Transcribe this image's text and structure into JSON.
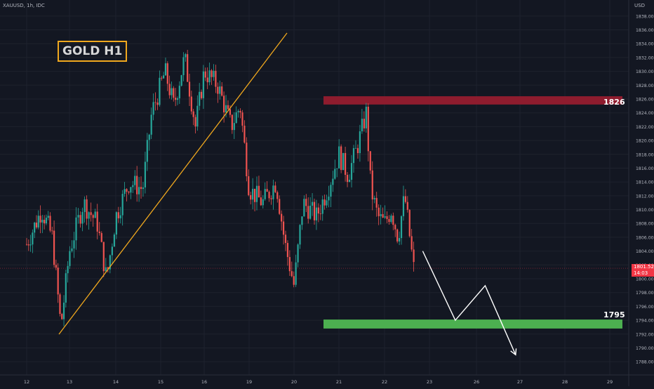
{
  "symbol": "XAUUSD, 1h, IDC",
  "currency": "USD",
  "title": "GOLD H1",
  "zones": {
    "resistance": {
      "label": "1826",
      "low": 1825.2,
      "high": 1826.4,
      "color": "#8e1c2e"
    },
    "support": {
      "label": "1795",
      "low": 1792.8,
      "high": 1794.1,
      "color": "#4caf50"
    }
  },
  "current_price": {
    "value": "1801.52",
    "countdown": "14:03"
  },
  "colors": {
    "up": "#26a69a",
    "down": "#ef5350",
    "trendline": "#f0a81e",
    "projection": "#ffffff"
  },
  "chart_data": {
    "type": "candlestick",
    "title": "GOLD H1",
    "ylim": [
      1787,
      1839
    ],
    "y_ticks": [
      "1788.00",
      "1790.00",
      "1792.00",
      "1794.00",
      "1796.00",
      "1798.00",
      "1800.00",
      "1802.00",
      "1804.00",
      "1806.00",
      "1808.00",
      "1810.00",
      "1812.00",
      "1814.00",
      "1816.00",
      "1818.00",
      "1820.00",
      "1822.00",
      "1824.00",
      "1826.00",
      "1828.00",
      "1830.00",
      "1832.00",
      "1834.00",
      "1836.00",
      "1838.00"
    ],
    "x_ticks": [
      "12",
      "13",
      "14",
      "15",
      "16",
      "19",
      "20",
      "21",
      "22",
      "23",
      "26",
      "27",
      "28",
      "29"
    ],
    "close_path": [
      {
        "d": 12.0,
        "p": 1805
      },
      {
        "d": 12.35,
        "p": 1810
      },
      {
        "d": 12.6,
        "p": 1806
      },
      {
        "d": 12.8,
        "p": 1793
      },
      {
        "d": 13.0,
        "p": 1804
      },
      {
        "d": 13.3,
        "p": 1811
      },
      {
        "d": 13.6,
        "p": 1808
      },
      {
        "d": 13.8,
        "p": 1800
      },
      {
        "d": 14.0,
        "p": 1809
      },
      {
        "d": 14.3,
        "p": 1814
      },
      {
        "d": 14.6,
        "p": 1813
      },
      {
        "d": 14.8,
        "p": 1824
      },
      {
        "d": 15.1,
        "p": 1830
      },
      {
        "d": 15.3,
        "p": 1825
      },
      {
        "d": 15.55,
        "p": 1832
      },
      {
        "d": 15.8,
        "p": 1822
      },
      {
        "d": 16.0,
        "p": 1830
      },
      {
        "d": 16.3,
        "p": 1828
      },
      {
        "d": 16.6,
        "p": 1822
      },
      {
        "d": 16.8,
        "p": 1825
      },
      {
        "d": 17.0,
        "p": 1813
      },
      {
        "d": 17.3,
        "p": 1811
      },
      {
        "d": 17.6,
        "p": 1814
      },
      {
        "d": 17.8,
        "p": 1805
      },
      {
        "d": 18.0,
        "p": 1799
      },
      {
        "d": 18.2,
        "p": 1811
      },
      {
        "d": 18.5,
        "p": 1809
      },
      {
        "d": 18.75,
        "p": 1813
      },
      {
        "d": 19.0,
        "p": 1818
      },
      {
        "d": 19.2,
        "p": 1815
      },
      {
        "d": 19.4,
        "p": 1819
      },
      {
        "d": 19.6,
        "p": 1824
      },
      {
        "d": 19.7,
        "p": 1813
      },
      {
        "d": 19.85,
        "p": 1809
      },
      {
        "d": 20.0,
        "p": 1808
      },
      {
        "d": 20.15,
        "p": 1810
      },
      {
        "d": 20.3,
        "p": 1806
      },
      {
        "d": 20.45,
        "p": 1812
      },
      {
        "d": 20.6,
        "p": 1804
      },
      {
        "d": 20.65,
        "p": 1801.5
      }
    ],
    "trendline": {
      "from": {
        "d": 12.8,
        "p": 1792.3
      },
      "to": {
        "d": 17.9,
        "p": 1835.5
      }
    },
    "projection": [
      {
        "d": 20.85,
        "p": 1804
      },
      {
        "d": 21.55,
        "p": 1794
      },
      {
        "d": 22.2,
        "p": 1799
      },
      {
        "d": 22.9,
        "p": 1789
      }
    ]
  }
}
